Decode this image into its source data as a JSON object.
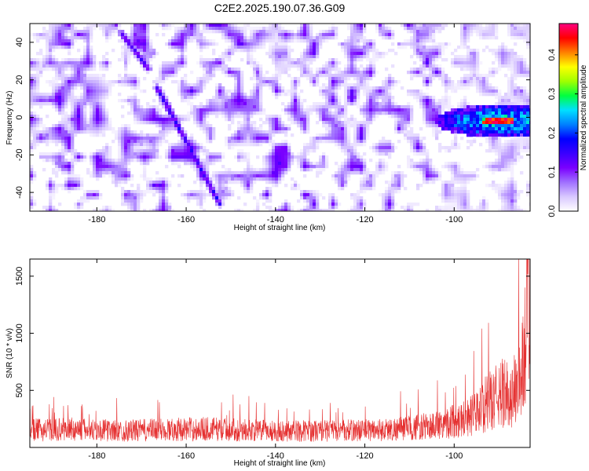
{
  "figure_title": "C2E2.2025.190.07.36.G09",
  "chart_data": [
    {
      "type": "heatmap",
      "title": "C2E2.2025.190.07.36.G09",
      "xlabel": "Height of straight line (km)",
      "ylabel": "Frequency (Hz)",
      "xlim": [
        -195,
        -83
      ],
      "ylim": [
        -50,
        50
      ],
      "xticks": [
        -180,
        -160,
        -140,
        -120,
        -100
      ],
      "yticks": [
        -40,
        -20,
        0,
        20,
        40
      ],
      "colorbar": {
        "label": "Normalized spectral amplitude",
        "range": [
          0.0,
          0.48
        ],
        "ticks": [
          0.0,
          0.1,
          0.2,
          0.3,
          0.4
        ],
        "colormap": [
          "#ffffff",
          "#d9c8ff",
          "#a070ff",
          "#7a00ff",
          "#3a00ff",
          "#0000ff",
          "#0080ff",
          "#00e0ff",
          "#00ff40",
          "#a0ff00",
          "#ffff00",
          "#ff8000",
          "#ff0000",
          "#ff0080"
        ]
      },
      "features": [
        {
          "name": "diagonal streak upper",
          "x_start": -174.5,
          "y_start": 45,
          "x_end": -168.5,
          "y_end": 26,
          "amplitude": 0.15
        },
        {
          "name": "diagonal streak lower",
          "x_start": -166.5,
          "y_start": 16,
          "x_end": -152.5,
          "y_end": -46,
          "amplitude": 0.17
        },
        {
          "name": "bright cluster",
          "x_center": -90,
          "y_center": -2,
          "x_width": 13,
          "y_width": 8,
          "peak_amplitude": 0.48
        },
        {
          "name": "noise field",
          "mean_amplitude": 0.05
        }
      ],
      "grid": false
    },
    {
      "type": "line",
      "xlabel": "Height of straight line (km)",
      "ylabel": "SNR (10 * v/v)",
      "xlim": [
        -195,
        -83
      ],
      "ylim": [
        0,
        1650
      ],
      "xticks": [
        -180,
        -160,
        -140,
        -120,
        -100
      ],
      "yticks": [
        500,
        1000,
        1500
      ],
      "series_color": "#e53030",
      "noise_band": {
        "baseline": 200,
        "typical_max": 400,
        "max": 600
      },
      "x": [
        -195,
        -185,
        -175,
        -165,
        -155,
        -145,
        -135,
        -125,
        -115,
        -110,
        -105,
        -100,
        -97,
        -95,
        -93,
        -91,
        -89,
        -87,
        -86,
        -85,
        -84.5,
        -84,
        -83.5
      ],
      "y": [
        210,
        220,
        200,
        215,
        225,
        205,
        200,
        205,
        215,
        235,
        260,
        320,
        370,
        410,
        520,
        590,
        660,
        620,
        780,
        850,
        1050,
        1350,
        1620
      ],
      "grid": false
    }
  ]
}
